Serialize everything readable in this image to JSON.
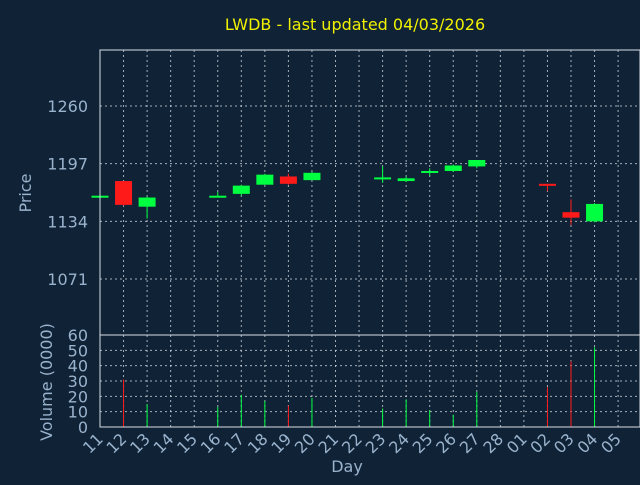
{
  "chart_data": {
    "type": "candlestick",
    "title": "LWDB - last updated 04/03/2026",
    "xlabel": "Day",
    "price_ylabel": "Price",
    "volume_ylabel": "Volume (0000)",
    "x_ticks": [
      "11",
      "12",
      "13",
      "14",
      "15",
      "16",
      "17",
      "18",
      "19",
      "20",
      "21",
      "22",
      "23",
      "24",
      "25",
      "26",
      "27",
      "28",
      "01",
      "02",
      "03",
      "04",
      "05"
    ],
    "price_ticks": [
      1071,
      1134,
      1197,
      1260
    ],
    "price_ylim": [
      1008,
      1260
    ],
    "volume_ticks": [
      0,
      10,
      20,
      30,
      40,
      50,
      60
    ],
    "volume_ylim": [
      0,
      60
    ],
    "grid": true,
    "colors": {
      "up": "#00ff40",
      "down": "#ff1a1a",
      "background": "#0f2236",
      "title": "#f0f000",
      "text": "#9ab3cc"
    },
    "candles": [
      {
        "day": "11",
        "open": 1161,
        "high": 1163,
        "low": 1161,
        "close": 1162,
        "volume": 0
      },
      {
        "day": "12",
        "open": 1178,
        "high": 1178,
        "low": 1151,
        "close": 1152,
        "volume": 31
      },
      {
        "day": "13",
        "open": 1150,
        "high": 1161,
        "low": 1137,
        "close": 1160,
        "volume": 15
      },
      {
        "day": "16",
        "open": 1161,
        "high": 1166,
        "low": 1160,
        "close": 1162,
        "volume": 13
      },
      {
        "day": "17",
        "open": 1164,
        "high": 1174,
        "low": 1162,
        "close": 1173,
        "volume": 21
      },
      {
        "day": "18",
        "open": 1174,
        "high": 1186,
        "low": 1174,
        "close": 1185,
        "volume": 17
      },
      {
        "day": "19",
        "open": 1183,
        "high": 1186,
        "low": 1174,
        "close": 1175,
        "volume": 14
      },
      {
        "day": "20",
        "open": 1179,
        "high": 1188,
        "low": 1179,
        "close": 1187,
        "volume": 19
      },
      {
        "day": "23",
        "open": 1182,
        "high": 1194,
        "low": 1176,
        "close": 1182,
        "volume": 12
      },
      {
        "day": "24",
        "open": 1178,
        "high": 1183,
        "low": 1177,
        "close": 1181,
        "volume": 18
      },
      {
        "day": "25",
        "open": 1187,
        "high": 1192,
        "low": 1184,
        "close": 1189,
        "volume": 11
      },
      {
        "day": "26",
        "open": 1189,
        "high": 1196,
        "low": 1188,
        "close": 1195,
        "volume": 8
      },
      {
        "day": "27",
        "open": 1194,
        "high": 1201,
        "low": 1192,
        "close": 1201,
        "volume": 23
      },
      {
        "day": "02",
        "open": 1175,
        "high": 1175,
        "low": 1167,
        "close": 1173,
        "volume": 26
      },
      {
        "day": "03",
        "open": 1144,
        "high": 1158,
        "low": 1130,
        "close": 1138,
        "volume": 43
      },
      {
        "day": "04",
        "open": 1134,
        "high": 1154,
        "low": 1133,
        "close": 1153,
        "volume": 52
      }
    ]
  }
}
